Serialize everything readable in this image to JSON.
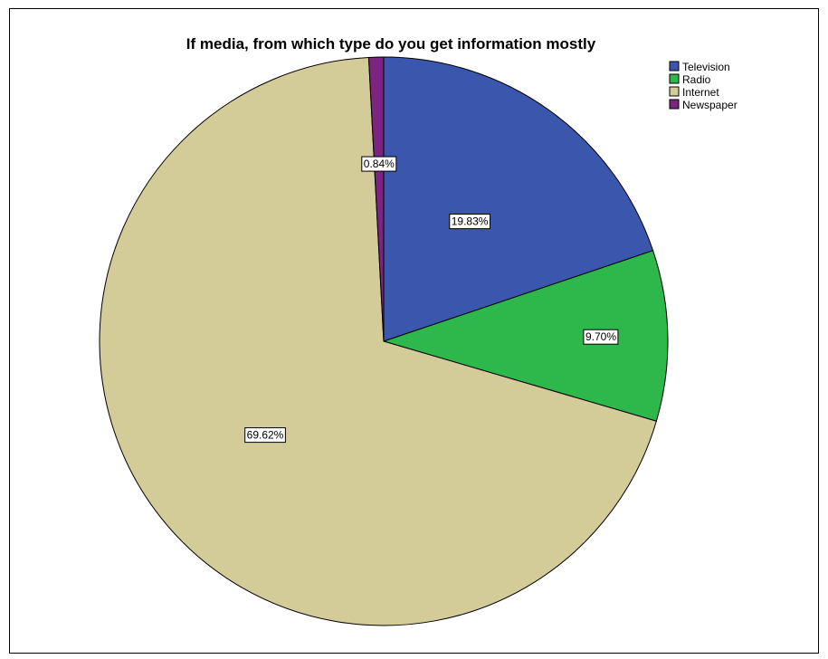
{
  "chart_data": {
    "type": "pie",
    "title": "If media, from which type do you get information mostly",
    "legend_position": "top-right",
    "slices": [
      {
        "label": "Television",
        "value": 19.83,
        "display": "19.83%",
        "color": "#3b56ad"
      },
      {
        "label": "Radio",
        "value": 9.7,
        "display": "9.70%",
        "color": "#2eb74a"
      },
      {
        "label": "Internet",
        "value": 69.62,
        "display": "69.62%",
        "color": "#d4cc98"
      },
      {
        "label": "Newspaper",
        "value": 0.84,
        "display": "0.84%",
        "color": "#7b2480"
      }
    ]
  }
}
